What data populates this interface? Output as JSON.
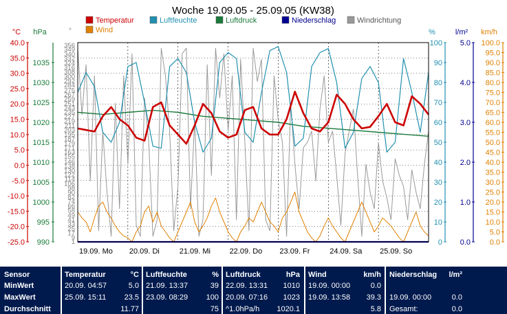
{
  "chart_data": {
    "type": "line",
    "title": "Woche 19.09.05 - 25.09.05 (KW38)",
    "legend": [
      {
        "name": "Temperatur",
        "color": "#cc0000"
      },
      {
        "name": "Luftfeuchte",
        "color": "#2090b0"
      },
      {
        "name": "Luftdruck",
        "color": "#1a7a3a"
      },
      {
        "name": "Niederschlag",
        "color": "#000090"
      },
      {
        "name": "Windrichtung",
        "color": "#999999"
      },
      {
        "name": "Wind",
        "color": "#e08000"
      }
    ],
    "x_labels": [
      "19.09. Mo",
      "20.09. Di",
      "21.09. Mi",
      "22.09. Do",
      "23.09. Fr",
      "24.09. Sa",
      "25.09. So"
    ],
    "axes": {
      "temperature": {
        "unit": "°C",
        "range": [
          -25,
          40
        ],
        "ticks": [
          "40.0",
          "35.0",
          "30.0",
          "25.0",
          "20.0",
          "15.0",
          "10.0",
          "5.0",
          "0.0",
          "-5.0",
          "-10.0",
          "-15.0",
          "-20.0",
          "-25.0"
        ],
        "color": "#cc0000"
      },
      "pressure": {
        "unit": "hPa",
        "range": [
          990,
          1040
        ],
        "ticks": [
          "1035",
          "1030",
          "1025",
          "1020",
          "1015",
          "1010",
          "1005",
          "1000",
          "995",
          "990"
        ],
        "color": "#1a7a3a"
      },
      "direction": {
        "unit": "°",
        "range": [
          0,
          360
        ],
        "ticks": [
          "356",
          "349",
          "340",
          "332",
          "324",
          "316",
          "308",
          "300",
          "292",
          "284",
          "275",
          "267",
          "259",
          "251",
          "243",
          "235",
          "227",
          "219",
          "211",
          "203",
          "195",
          "187",
          "179",
          "171",
          "163",
          "155",
          "146",
          "138",
          "130",
          "122",
          "114",
          "106",
          "98",
          "90",
          "82",
          "74",
          "66",
          "58",
          "49",
          "41",
          "33",
          "25",
          "17",
          "9",
          "1"
        ],
        "color": "#808080"
      },
      "humidity": {
        "unit": "%",
        "range": [
          0,
          100
        ],
        "ticks": [
          "100",
          "90",
          "80",
          "70",
          "60",
          "50",
          "40",
          "30",
          "20",
          "10",
          "0"
        ],
        "color": "#2090b0"
      },
      "rain": {
        "unit": "l/m²",
        "range": [
          0,
          5
        ],
        "ticks": [
          "5.0",
          "4.0",
          "3.0",
          "2.0",
          "1.0",
          "0.0"
        ],
        "color": "#000090"
      },
      "wind": {
        "unit": "km/h",
        "range": [
          0,
          100
        ],
        "ticks": [
          "100.0",
          "95.0",
          "90.0",
          "85.0",
          "80.0",
          "75.0",
          "70.0",
          "65.0",
          "60.0",
          "55.0",
          "50.0",
          "45.0",
          "40.0",
          "35.0",
          "30.0",
          "25.0",
          "20.0",
          "15.0",
          "10.0",
          "5.0",
          "0.0"
        ],
        "color": "#e08000"
      }
    },
    "x_range_hours": [
      0,
      168
    ],
    "series": [
      {
        "name": "Temperatur",
        "axis": "temperature",
        "color": "#cc0000",
        "x": [
          0,
          4,
          8,
          12,
          16,
          20,
          24,
          28,
          32,
          36,
          40,
          44,
          48,
          52,
          56,
          60,
          64,
          68,
          72,
          76,
          80,
          84,
          88,
          92,
          96,
          100,
          104,
          108,
          112,
          116,
          120,
          124,
          128,
          132,
          136,
          140,
          144,
          148,
          152,
          156,
          160,
          164,
          168
        ],
        "y": [
          12.0,
          11.5,
          11.0,
          16.0,
          19.0,
          15.0,
          13.0,
          9.0,
          8.0,
          19.0,
          20.5,
          13.0,
          10.0,
          7.0,
          13.0,
          20.0,
          17.0,
          11.0,
          9.0,
          10.0,
          18.0,
          19.0,
          12.0,
          10.0,
          10.0,
          15.0,
          24.0,
          17.0,
          12.0,
          11.0,
          14.0,
          23.0,
          20.0,
          15.0,
          12.0,
          12.5,
          16.0,
          20.0,
          14.0,
          13.0,
          22.5,
          20.0,
          16.5
        ]
      },
      {
        "name": "Luftfeuchte",
        "axis": "humidity",
        "color": "#2090b0",
        "x": [
          0,
          4,
          8,
          12,
          16,
          20,
          24,
          28,
          32,
          36,
          40,
          44,
          48,
          52,
          56,
          60,
          64,
          68,
          72,
          76,
          80,
          84,
          88,
          92,
          96,
          100,
          104,
          108,
          112,
          116,
          120,
          124,
          128,
          132,
          136,
          140,
          144,
          148,
          152,
          156,
          160,
          164,
          168
        ],
        "y": [
          75,
          85,
          78,
          55,
          50,
          60,
          88,
          90,
          70,
          48,
          47,
          88,
          92,
          85,
          60,
          45,
          52,
          90,
          95,
          92,
          55,
          50,
          75,
          96,
          98,
          85,
          48,
          52,
          88,
          95,
          97,
          80,
          47,
          55,
          82,
          88,
          80,
          45,
          50,
          92,
          75,
          55,
          85
        ]
      },
      {
        "name": "Luftdruck",
        "axis": "pressure",
        "color": "#1a7a3a",
        "x": [
          0,
          12,
          24,
          36,
          48,
          60,
          72,
          84,
          96,
          108,
          120,
          132,
          144,
          156,
          168
        ],
        "y": [
          1022.5,
          1022,
          1022.5,
          1023,
          1022.5,
          1021.5,
          1021,
          1020.5,
          1020,
          1019,
          1018.5,
          1018,
          1017.5,
          1017,
          1016.5
        ]
      },
      {
        "name": "Niederschlag",
        "axis": "rain",
        "color": "#000090",
        "x": [
          0,
          168
        ],
        "y": [
          0.0,
          0.0
        ]
      },
      {
        "name": "Windrichtung",
        "axis": "direction",
        "color": "#999999",
        "x": [
          0,
          2,
          4,
          6,
          8,
          10,
          12,
          14,
          16,
          18,
          20,
          22,
          24,
          26,
          28,
          30,
          32,
          34,
          36,
          38,
          40,
          42,
          44,
          46,
          48,
          50,
          52,
          54,
          56,
          58,
          60,
          62,
          64,
          66,
          68,
          70,
          72,
          74,
          76,
          78,
          80,
          82,
          84,
          86,
          88,
          90,
          92,
          94,
          96,
          98,
          100,
          102,
          104,
          106,
          108,
          110,
          112,
          114,
          116,
          118,
          120,
          122,
          124,
          126,
          128,
          130,
          132,
          134,
          136,
          138,
          140,
          142,
          144,
          146,
          148,
          150,
          152,
          154,
          156,
          158,
          160,
          162,
          164,
          166,
          168
        ],
        "y": [
          350,
          230,
          320,
          110,
          300,
          20,
          200,
          90,
          10,
          250,
          60,
          300,
          140,
          340,
          30,
          10,
          260,
          180,
          10,
          40,
          350,
          300,
          200,
          20,
          100,
          340,
          350,
          60,
          220,
          10,
          40,
          320,
          120,
          350,
          260,
          340,
          200,
          300,
          40,
          330,
          180,
          20,
          350,
          290,
          330,
          40,
          20,
          300,
          220,
          180,
          10,
          250,
          140,
          60,
          170,
          180,
          200,
          110,
          240,
          300,
          180,
          200,
          120,
          30,
          160,
          200,
          240,
          120,
          10,
          140,
          90,
          60,
          180,
          110,
          80,
          40,
          150,
          120,
          100,
          40,
          130,
          90,
          60,
          140,
          200
        ]
      },
      {
        "name": "Wind",
        "axis": "wind",
        "color": "#e08000",
        "x": [
          0,
          2,
          4,
          6,
          8,
          10,
          12,
          14,
          16,
          18,
          20,
          22,
          24,
          26,
          28,
          30,
          32,
          34,
          36,
          38,
          40,
          42,
          44,
          46,
          48,
          50,
          52,
          54,
          56,
          58,
          60,
          62,
          64,
          66,
          68,
          70,
          72,
          74,
          76,
          78,
          80,
          82,
          84,
          86,
          88,
          90,
          92,
          94,
          96,
          98,
          100,
          102,
          104,
          106,
          108,
          110,
          112,
          114,
          116,
          118,
          120,
          122,
          124,
          126,
          128,
          130,
          132,
          134,
          136,
          138,
          140,
          142,
          144,
          146,
          148,
          150,
          152,
          154,
          156,
          158,
          160,
          162,
          164,
          166,
          168
        ],
        "y": [
          15,
          12,
          10,
          5,
          12,
          18,
          20,
          15,
          12,
          8,
          5,
          3,
          2,
          0,
          5,
          8,
          15,
          18,
          10,
          15,
          8,
          5,
          2,
          0,
          5,
          10,
          15,
          20,
          10,
          5,
          8,
          12,
          18,
          22,
          15,
          10,
          5,
          2,
          0,
          5,
          8,
          12,
          10,
          15,
          20,
          15,
          10,
          8,
          5,
          12,
          15,
          20,
          25,
          15,
          10,
          5,
          2,
          0,
          3,
          8,
          12,
          8,
          5,
          2,
          0,
          5,
          10,
          15,
          20,
          15,
          10,
          5,
          8,
          12,
          10,
          8,
          5,
          2,
          0,
          5,
          10,
          15,
          8,
          5,
          3
        ]
      }
    ]
  },
  "stats": {
    "headers": {
      "sensor": "Sensor",
      "temperatur": "Temperatur",
      "temperatur_unit": "°C",
      "luftfeuchte": "Luftfeuchte",
      "luftfeuchte_unit": "%",
      "luftdruck": "Luftdruck",
      "luftdruck_unit": "hPa",
      "wind": "Wind",
      "wind_unit": "km/h",
      "niederschlag": "Niederschlag",
      "niederschlag_unit": "l/m²"
    },
    "rows": [
      {
        "label": "MinWert",
        "temp_time": "20.09.  04:57",
        "temp_val": "5.0",
        "hum_time": "21.09.  13:37",
        "hum_val": "39",
        "press_time": "22.09.  13:31",
        "press_val": "1010",
        "wind_time": "19.09.  00:00",
        "wind_val": "0.0",
        "rain_time": "",
        "rain_val": ""
      },
      {
        "label": "MaxWert",
        "temp_time": "25.09.  15:11",
        "temp_val": "23.5",
        "hum_time": "23.09.  08:29",
        "hum_val": "100",
        "press_time": "20.09.  07:16",
        "press_val": "1023",
        "wind_time": "19.09.  13:58",
        "wind_val": "39.3",
        "rain_time": "19.09.  00:00",
        "rain_val": "0.0"
      },
      {
        "label": "Durchschnitt",
        "temp_time": "",
        "temp_val": "11.77",
        "hum_time": "",
        "hum_val": "75",
        "press_time": "^1.0hPa/h",
        "press_val": "1020.1",
        "wind_time": "",
        "wind_val": "5.8",
        "rain_time": "Gesamt:",
        "rain_val": "0.0"
      }
    ]
  }
}
